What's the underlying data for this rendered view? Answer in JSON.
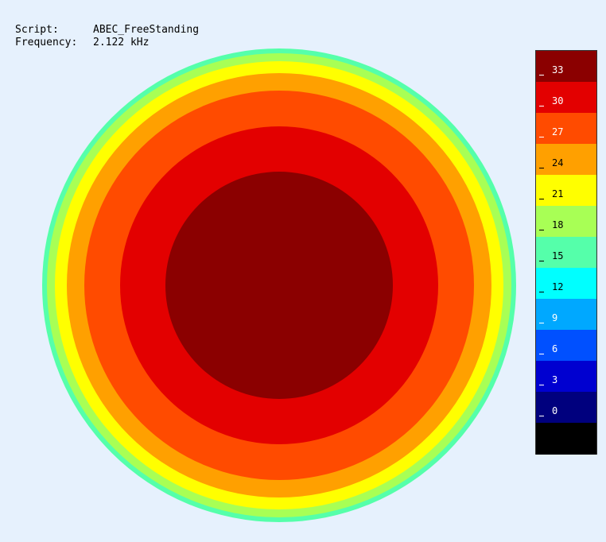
{
  "info": {
    "script_key": "Script:",
    "script_value": "ABEC_FreeStanding",
    "frequency_key": "Frequency:",
    "frequency_value": "2.122 kHz"
  },
  "chart_data": {
    "type": "heatmap",
    "title": "",
    "shape": "circular contour (concentric levels, highest at center)",
    "levels_from_center": [
      33,
      30,
      27,
      24,
      21,
      18,
      15
    ],
    "colorbar": {
      "tick_labels": [
        "33",
        "30",
        "27",
        "24",
        "21",
        "18",
        "15",
        "12",
        "9",
        "6",
        "3",
        "0"
      ],
      "values": [
        33,
        30,
        27,
        24,
        21,
        18,
        15,
        12,
        9,
        6,
        3,
        0
      ],
      "range": [
        -3,
        36
      ],
      "colors_top_to_bottom": [
        "#8b0000",
        "#e30000",
        "#ff4b00",
        "#ffa000",
        "#ffff00",
        "#a8ff55",
        "#55ffaa",
        "#00ffff",
        "#00a8ff",
        "#0050ff",
        "#0000d0",
        "#00007e",
        "#000000"
      ]
    }
  }
}
